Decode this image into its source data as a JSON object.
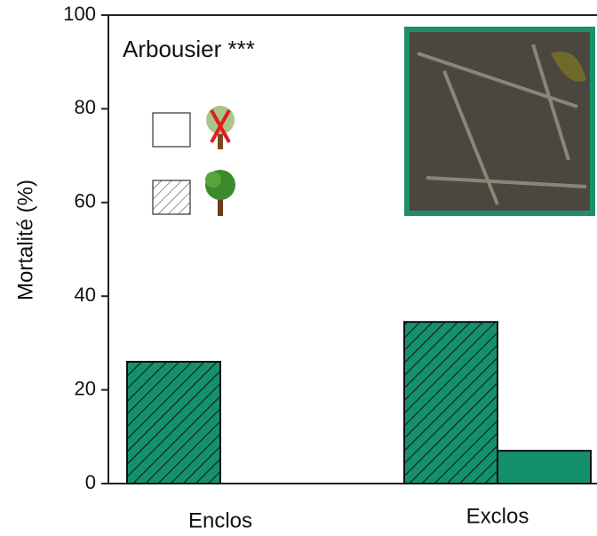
{
  "chart_data": {
    "type": "bar",
    "title": "Arbousier ***",
    "ylabel": "Mortalité (%)",
    "categories": [
      "Enclos",
      "Exclos"
    ],
    "series": [
      {
        "color": "#15906c",
        "hatch": true,
        "values": [
          26,
          34.5
        ]
      },
      {
        "color": "#15906c",
        "hatch": false,
        "values": [
          0,
          7
        ]
      }
    ],
    "ylim": [
      0,
      100
    ],
    "yticks": [
      0,
      20,
      40,
      60,
      80,
      100
    ]
  }
}
